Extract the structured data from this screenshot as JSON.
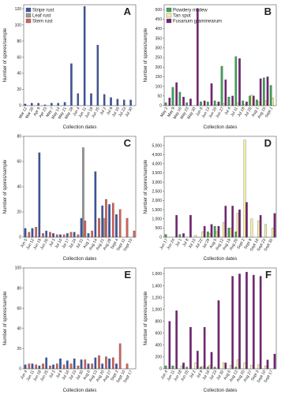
{
  "chart_data": [
    {
      "type": "bar",
      "label": "A",
      "xlabel": "Collection dates",
      "ylabel": "Number of spores/sample",
      "legend": "top-left",
      "categories": [
        "Mar 12",
        "Mar 26",
        "Apr 9",
        "Apr 23",
        "May 7",
        "May 14",
        "May 21",
        "May 28",
        "Jun 4",
        "Jun 11",
        "Jun 18",
        "Jun 25",
        "Jul 2",
        "Jul 9",
        "Jul 16",
        "Jul 23",
        "Jul 30"
      ],
      "series": [
        {
          "name": "Stripe rust",
          "color": "#3b54a6",
          "values": [
            2,
            3,
            3,
            1,
            3,
            3,
            4,
            52,
            15,
            123,
            15,
            75,
            14,
            10,
            8,
            7,
            7
          ]
        },
        {
          "name": "Leaf rust",
          "color": "#9a9a9a",
          "values": [
            0,
            0,
            0,
            0,
            0,
            0,
            0,
            0,
            0,
            0,
            0,
            0,
            0,
            0,
            0,
            0,
            0
          ]
        },
        {
          "name": "Stem rust",
          "color": "#d9605a",
          "values": [
            0,
            0,
            0,
            0,
            0,
            0,
            0,
            0,
            0,
            0,
            0,
            0,
            0,
            0,
            0,
            0,
            0
          ]
        }
      ],
      "ylim": [
        0,
        125
      ],
      "yticks": [
        0,
        20,
        40,
        60,
        80,
        100,
        120
      ]
    },
    {
      "type": "bar",
      "label": "B",
      "xlabel": "Collection dates",
      "ylabel": "Number of spores/sample",
      "legend": "top-left",
      "categories": [
        "May 2",
        "May 9",
        "May 16",
        "May 23",
        "May 30",
        "Jun 6",
        "Jun 13",
        "Jun 20",
        "Jun 27",
        "Jul 4",
        "Jul 11",
        "Jul 18",
        "Jul 25",
        "Aug 1",
        "Aug 15",
        "Sept 1"
      ],
      "series": [
        {
          "name": "Powdery mildew",
          "color": "#3aa655",
          "values": [
            15,
            95,
            70,
            15,
            0,
            20,
            20,
            25,
            205,
            45,
            255,
            25,
            50,
            30,
            145,
            105
          ]
        },
        {
          "name": "Tan spot",
          "color": "#f3f3a0",
          "values": [
            0,
            0,
            0,
            0,
            0,
            0,
            0,
            5,
            10,
            0,
            15,
            5,
            55,
            20,
            25,
            40
          ]
        },
        {
          "name": "Fusarium graminearum",
          "color": "#7a2079",
          "values": [
            40,
            120,
            45,
            35,
            505,
            25,
            115,
            20,
            135,
            50,
            245,
            20,
            50,
            140,
            150,
            0
          ]
        }
      ],
      "ylim": [
        0,
        525
      ],
      "yticks": [
        0,
        50,
        100,
        150,
        200,
        250,
        300,
        350,
        400,
        450,
        500
      ]
    },
    {
      "type": "bar",
      "label": "C",
      "xlabel": "Collection dates",
      "ylabel": "Number of spores/sample",
      "categories": [
        "Jun 5",
        "Jun 12",
        "Jun 19",
        "Jun 26",
        "Jul 3",
        "Jul 10",
        "Jul 17",
        "Jul 24",
        "Jul 31",
        "Aug 7",
        "Aug 14",
        "Aug 21",
        "Aug 28",
        "Sept 4",
        "Sept 11",
        "Sept 15"
      ],
      "series": [
        {
          "color": "#3b54a6",
          "values": [
            7,
            7,
            67,
            5,
            3,
            2,
            3,
            4,
            15,
            3,
            52,
            25,
            26,
            18,
            0,
            0
          ]
        },
        {
          "color": "#9a9a9a",
          "values": [
            0,
            0,
            0,
            0,
            0,
            0,
            0,
            0,
            71,
            0,
            0,
            15,
            0,
            0,
            0,
            0
          ]
        },
        {
          "color": "#d9605a",
          "values": [
            4,
            8,
            3,
            4,
            2,
            2,
            4,
            2,
            13,
            5,
            15,
            30,
            27,
            22,
            15,
            5
          ]
        }
      ],
      "ylim": [
        0,
        80
      ],
      "yticks": [
        0,
        20,
        40,
        60,
        80
      ]
    },
    {
      "type": "bar",
      "label": "D",
      "xlabel": "Collection dates",
      "ylabel": "Number of spores/sample",
      "categories": [
        "Jun 17",
        "Jun 24",
        "Jul 1",
        "Jul 8",
        "Jul 15",
        "Jul 22",
        "Jul 29",
        "Aug 5",
        "Aug 12",
        "Aug 19",
        "Aug 26",
        "Sept 2",
        "Sept 9",
        "Sept 16",
        "Sept 23",
        "Sept 30"
      ],
      "series": [
        {
          "color": "#3aa655",
          "values": [
            150,
            0,
            150,
            0,
            0,
            0,
            300,
            600,
            0,
            500,
            300,
            0,
            0,
            0,
            0,
            0
          ]
        },
        {
          "color": "#f3f3a0",
          "values": [
            0,
            0,
            0,
            0,
            100,
            300,
            200,
            300,
            800,
            500,
            1300,
            5300,
            1000,
            900,
            700,
            500
          ]
        },
        {
          "color": "#7a2079",
          "values": [
            0,
            1200,
            200,
            1200,
            0,
            600,
            700,
            600,
            1700,
            1700,
            1500,
            1900,
            0,
            1200,
            0,
            1300
          ]
        }
      ],
      "ylim": [
        0,
        5500
      ],
      "yticks": [
        0,
        500,
        {
          "value": 1000,
          "label": "1,000"
        },
        {
          "value": 1500,
          "label": "1,500"
        },
        {
          "value": 2000,
          "label": "2,000"
        },
        {
          "value": 2500,
          "label": "2,500"
        },
        {
          "value": 3000,
          "label": "3,000"
        },
        {
          "value": 3500,
          "label": "3,500"
        },
        {
          "value": 4000,
          "label": "4,000"
        },
        {
          "value": 4500,
          "label": "4,500"
        },
        {
          "value": 5000,
          "label": "5,000"
        }
      ]
    },
    {
      "type": "bar",
      "label": "E",
      "xlabel": "Collection dates",
      "ylabel": "Number of spores/sample",
      "categories": [
        "Jun 4",
        "Jun 11",
        "Jun 18",
        "Jun 25",
        "Jul 2",
        "Jul 9",
        "Jul 16",
        "Jul 23",
        "Jul 30",
        "Aug 6",
        "Aug 13",
        "Aug 20",
        "Aug 27",
        "Sept 3",
        "Sept 10",
        "Sept 17"
      ],
      "series": [
        {
          "color": "#3b54a6",
          "values": [
            4,
            5,
            3,
            11,
            4,
            10,
            8,
            10,
            9,
            5,
            11,
            5,
            10,
            5,
            0,
            0
          ]
        },
        {
          "color": "#9a9a9a",
          "values": [
            0,
            0,
            0,
            0,
            0,
            0,
            0,
            0,
            0,
            0,
            0,
            0,
            0,
            0,
            0,
            0
          ]
        },
        {
          "color": "#d9605a",
          "values": [
            5,
            4,
            5,
            3,
            5,
            4,
            5,
            3,
            9,
            5,
            13,
            12,
            11,
            25,
            5,
            0
          ]
        }
      ],
      "ylim": [
        0,
        100
      ],
      "yticks": [
        0,
        20,
        40,
        60,
        80,
        100
      ]
    },
    {
      "type": "bar",
      "label": "F",
      "xlabel": "Collection dates",
      "ylabel": "Number of spores/sample",
      "categories": [
        "Jun 4",
        "Jun 11",
        "Jun 18",
        "Jun 25",
        "Jul 2",
        "Jul 9",
        "Jul 16",
        "Jul 23",
        "Jul 30",
        "Aug 6",
        "Aug 13",
        "Aug 20",
        "Aug 27",
        "Sept 3",
        "Sept 10",
        "Sept 17"
      ],
      "series": [
        {
          "color": "#3aa655",
          "values": [
            50,
            50,
            0,
            30,
            0,
            30,
            30,
            30,
            0,
            0,
            30,
            0,
            0,
            0,
            0,
            0
          ]
        },
        {
          "color": "#f3f3a0",
          "values": [
            0,
            0,
            50,
            0,
            100,
            40,
            60,
            0,
            100,
            60,
            150,
            100,
            60,
            70,
            50,
            0
          ]
        },
        {
          "color": "#7a2079",
          "values": [
            800,
            980,
            100,
            700,
            300,
            700,
            280,
            1150,
            100,
            1560,
            1600,
            1630,
            1580,
            1560,
            150,
            250
          ]
        }
      ],
      "ylim": [
        0,
        1700
      ],
      "yticks": [
        0,
        200,
        400,
        600,
        800,
        {
          "value": 1000,
          "label": "1,000"
        },
        {
          "value": 1200,
          "label": "1,200"
        },
        {
          "value": 1400,
          "label": "1,400"
        },
        {
          "value": 1600,
          "label": "1,600"
        }
      ]
    }
  ]
}
